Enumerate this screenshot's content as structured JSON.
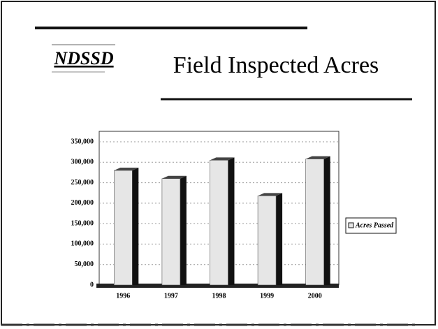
{
  "chart_data": {
    "type": "bar",
    "logo": "NDSSD",
    "title": "Field Inspected Acres",
    "categories": [
      "1996",
      "1997",
      "1998",
      "1999",
      "2000"
    ],
    "series": [
      {
        "name": "Acres Passed",
        "color": "#e6e6e6",
        "values": [
          280000,
          260000,
          305000,
          218000,
          308000
        ]
      }
    ],
    "ylim": [
      0,
      350000
    ],
    "yticks": [
      0,
      {
        "value": 50000,
        "label": "50,000"
      },
      {
        "value": 100000,
        "label": "100,000"
      },
      {
        "value": 150000,
        "label": "150,000"
      },
      {
        "value": 200000,
        "label": "200,000"
      },
      {
        "value": 250000,
        "label": "250,000"
      },
      {
        "value": 300000,
        "label": "300,000"
      },
      {
        "value": 350000,
        "label": "350,000"
      }
    ],
    "grid": true,
    "legend": "right"
  }
}
